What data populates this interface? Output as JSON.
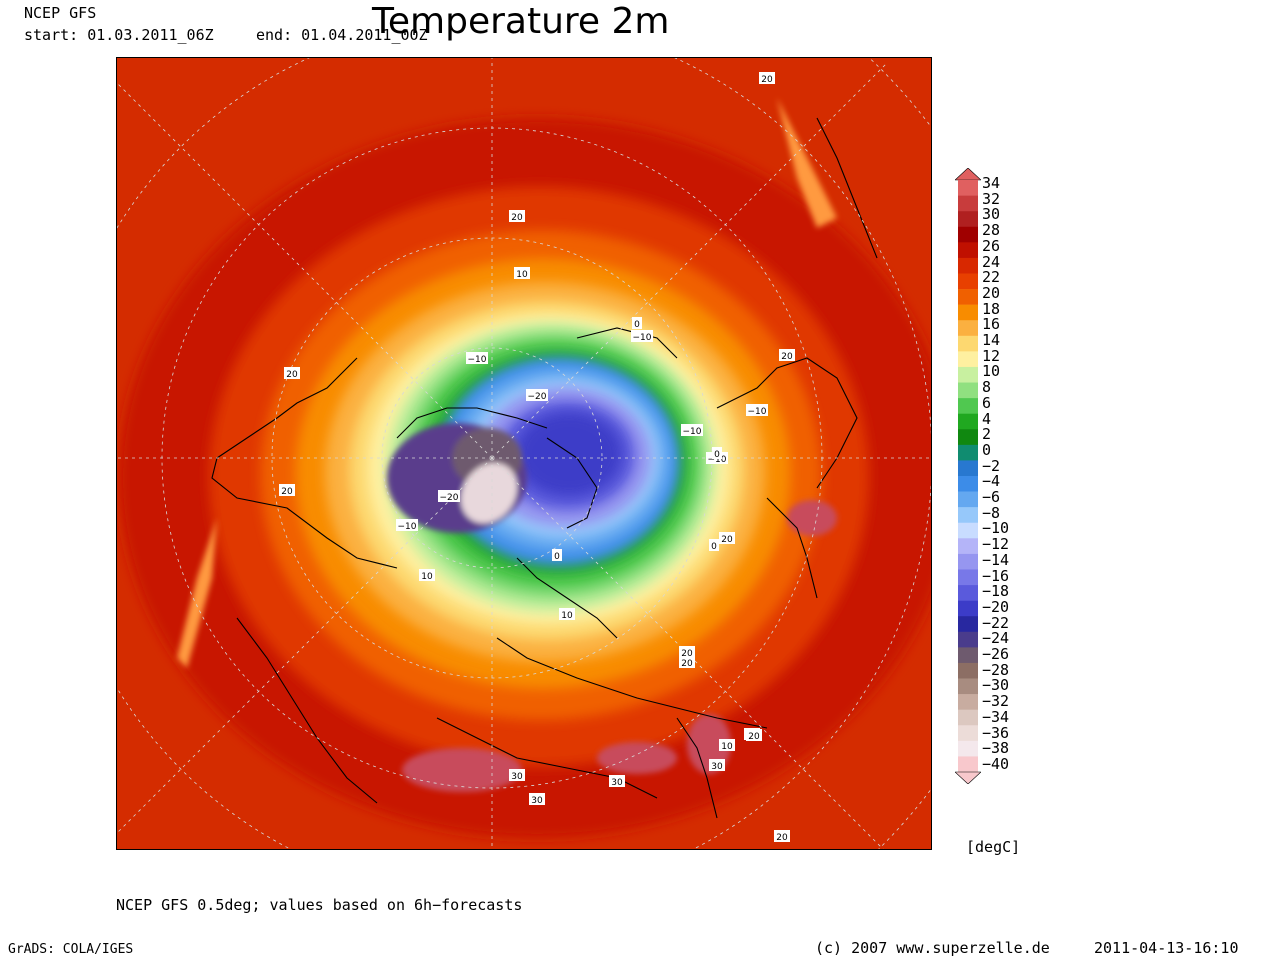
{
  "header": {
    "model": "NCEP GFS",
    "start": "start: 01.03.2011_06Z",
    "end": "end: 01.04.2011_00Z",
    "title": "Temperature 2m"
  },
  "colorbar": {
    "labels": [
      "34",
      "32",
      "30",
      "28",
      "26",
      "24",
      "22",
      "20",
      "18",
      "16",
      "14",
      "12",
      "10",
      "8",
      "6",
      "4",
      "2",
      "0",
      "−2",
      "−4",
      "−6",
      "−8",
      "−10",
      "−12",
      "−14",
      "−16",
      "−18",
      "−20",
      "−22",
      "−24",
      "−26",
      "−28",
      "−30",
      "−32",
      "−34",
      "−36",
      "−38",
      "−40"
    ],
    "colors": [
      "#e06060",
      "#c83c3c",
      "#b02020",
      "#a00000",
      "#c01000",
      "#d82800",
      "#e84000",
      "#f06000",
      "#f88c00",
      "#fbb040",
      "#fdd870",
      "#fef0a0",
      "#c8f0a0",
      "#90e080",
      "#50c850",
      "#20a820",
      "#108810",
      "#108c70",
      "#2878d0",
      "#3c8ce8",
      "#64a8f0",
      "#96c8fa",
      "#c8dcff",
      "#b4b4f8",
      "#9696f0",
      "#7878e8",
      "#5a5adc",
      "#3c3cc8",
      "#2828a0",
      "#4a3c8c",
      "#6e5a6e",
      "#8c6e64",
      "#a88c80",
      "#c8aca0",
      "#dcc8c0",
      "#ecdcd8",
      "#f4e8ec",
      "#f8c8cc"
    ],
    "unit": "[degC]"
  },
  "map": {
    "contour_labels": [
      "20",
      "20",
      "20",
      "10",
      "0",
      "−10",
      "−10",
      "−10",
      "−20",
      "−20",
      "−10",
      "−10",
      "−10",
      "0",
      "10",
      "20",
      "20",
      "20",
      "10",
      "30",
      "30",
      "30",
      "30",
      "20",
      "20",
      "20",
      "10",
      "0",
      "0",
      "20",
      "20"
    ]
  },
  "footer": {
    "note": "NCEP GFS 0.5deg; values based on 6h−forecasts",
    "grads": "GrADS: COLA/IGES",
    "copyright": "(c) 2007 www.superzelle.de",
    "timestamp": "2011-04-13-16:10"
  }
}
